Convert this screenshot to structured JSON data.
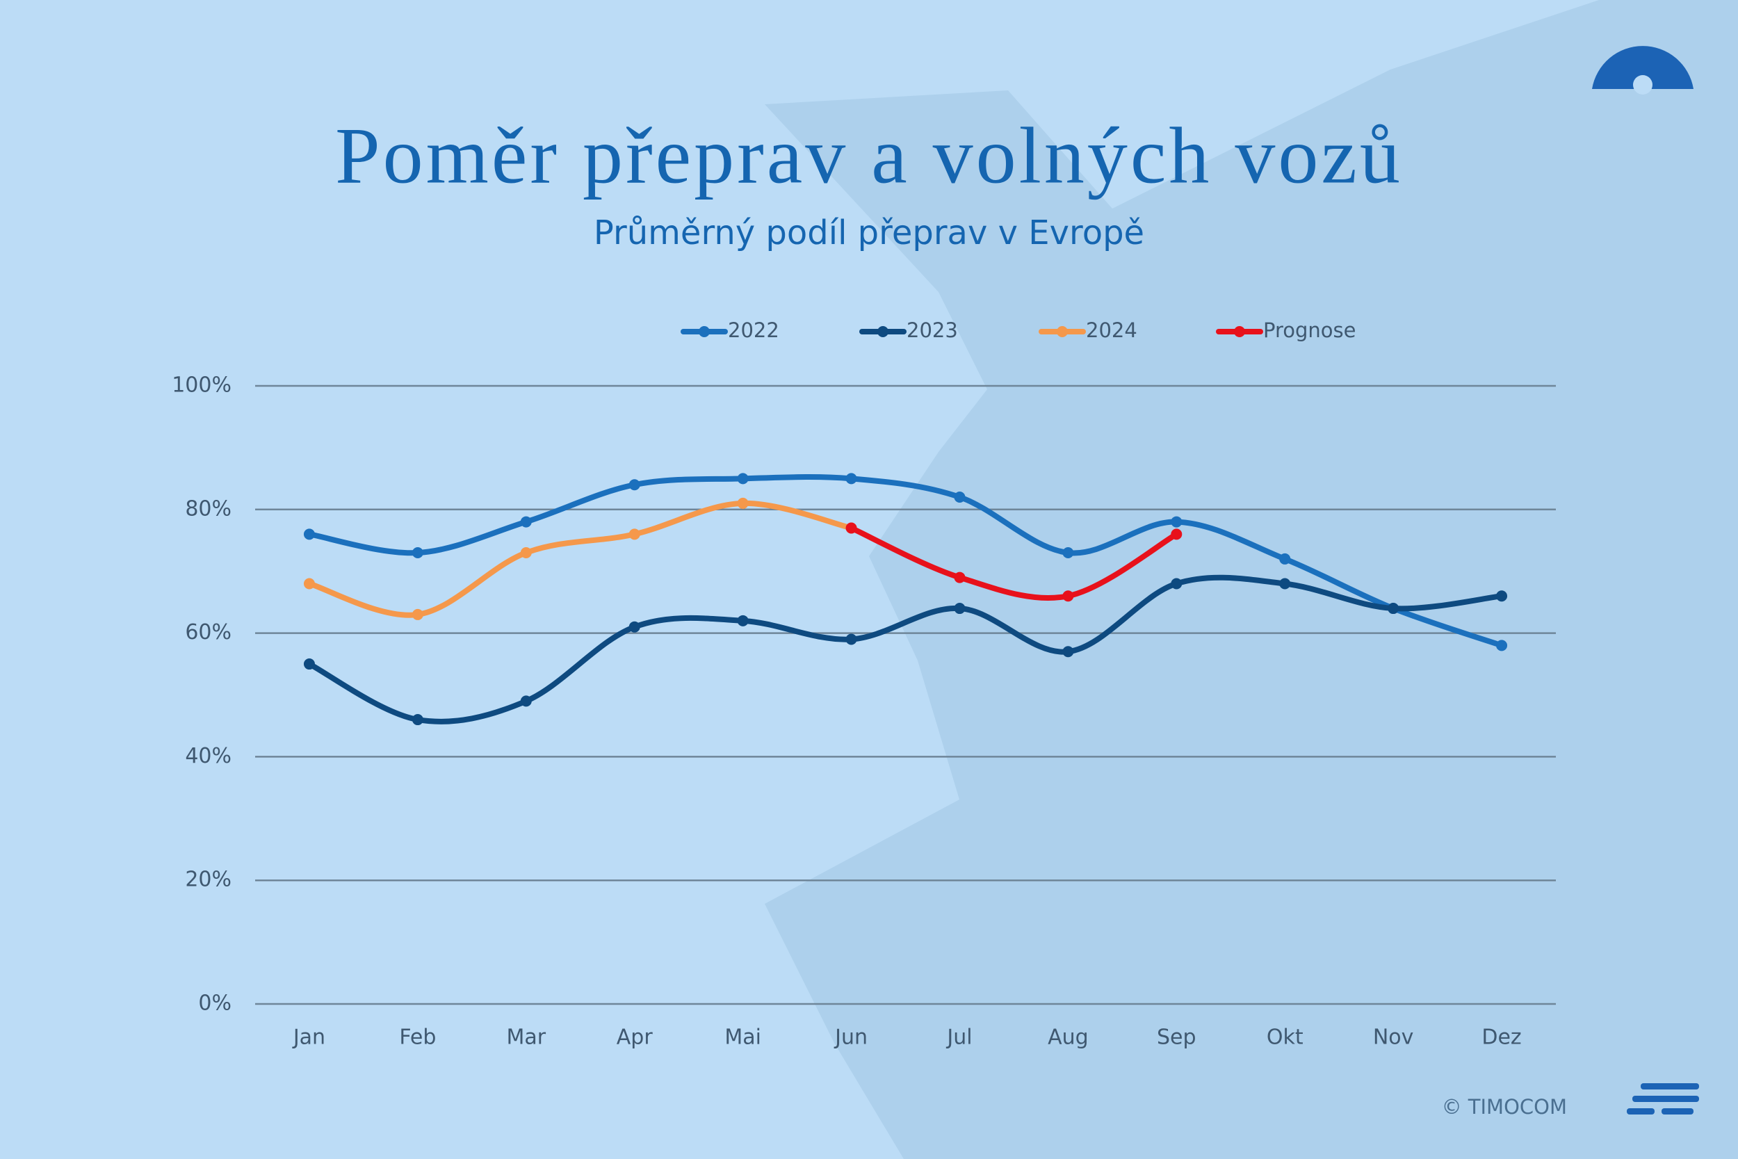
{
  "chart_data": {
    "type": "line",
    "title": "Poměr přeprav a volných vozů",
    "subtitle": "Průměrný podíl přeprav v Evropě",
    "copyright": "© TIMOCOM",
    "categories": [
      "Jan",
      "Feb",
      "Mar",
      "Apr",
      "Mai",
      "Jun",
      "Jul",
      "Aug",
      "Sep",
      "Okt",
      "Nov",
      "Dez"
    ],
    "series": [
      {
        "name": "2022",
        "color": "#1b70bd",
        "values": [
          76,
          73,
          78,
          84,
          85,
          85,
          82,
          73,
          78,
          72,
          64,
          58
        ]
      },
      {
        "name": "2023",
        "color": "#0e4a80",
        "values": [
          55,
          46,
          49,
          61,
          62,
          59,
          64,
          57,
          68,
          68,
          64,
          66
        ]
      },
      {
        "name": "2024",
        "color": "#f5984b",
        "values": [
          68,
          63,
          73,
          76,
          81,
          77,
          null,
          null,
          null,
          null,
          null,
          null
        ]
      },
      {
        "name": "Prognose",
        "color": "#e8111b",
        "values": [
          null,
          null,
          null,
          null,
          null,
          77,
          69,
          66,
          76,
          null,
          null,
          null
        ]
      }
    ],
    "ylim": [
      0,
      100
    ],
    "yticks": [
      {
        "value": 0,
        "label": "0%"
      },
      {
        "value": 20,
        "label": "20%"
      },
      {
        "value": 40,
        "label": "40%"
      },
      {
        "value": 60,
        "label": "60%"
      },
      {
        "value": 80,
        "label": "80%"
      },
      {
        "value": 100,
        "label": "100%"
      }
    ],
    "grid": true,
    "legend": "top"
  }
}
